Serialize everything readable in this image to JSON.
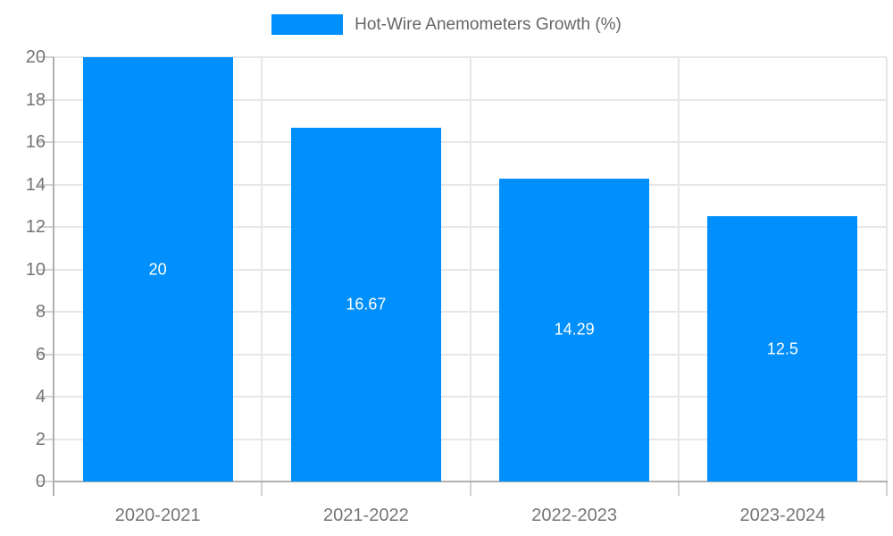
{
  "legend": {
    "label": "Hot-Wire Anemometers Growth (%)",
    "swatch_color": "#008FFB"
  },
  "chart_data": {
    "type": "bar",
    "title": "Hot-Wire Anemometers Growth (%)",
    "categories": [
      "2020-2021",
      "2021-2022",
      "2022-2023",
      "2023-2024"
    ],
    "values": [
      20,
      16.67,
      14.29,
      12.5
    ],
    "bar_labels": [
      "20",
      "16.67",
      "14.29",
      "12.5"
    ],
    "series_name": "Hot-Wire Anemometers Growth (%)",
    "xlabel": "",
    "ylabel": "",
    "ylim": [
      0,
      20
    ],
    "yticks": [
      0,
      2,
      4,
      6,
      8,
      10,
      12,
      14,
      16,
      18,
      20
    ],
    "grid": true,
    "legend_position": "top",
    "value_labels_inside_bars": true
  },
  "colors": {
    "bar": "#008FFB",
    "grid_line": "#e7e7e7",
    "axis_line": "#b1b1b1",
    "tick_line": "#d2d2d2",
    "axis_label": "#757575",
    "legend_text": "#666666",
    "value_text": "#ffffff",
    "background": "#ffffff"
  }
}
